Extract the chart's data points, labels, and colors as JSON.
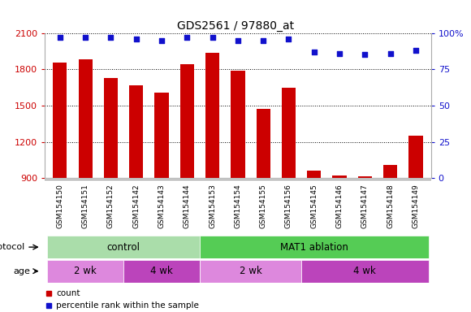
{
  "title": "GDS2561 / 97880_at",
  "samples": [
    "GSM154150",
    "GSM154151",
    "GSM154152",
    "GSM154142",
    "GSM154143",
    "GSM154144",
    "GSM154153",
    "GSM154154",
    "GSM154155",
    "GSM154156",
    "GSM154145",
    "GSM154146",
    "GSM154147",
    "GSM154148",
    "GSM154149"
  ],
  "counts": [
    1855,
    1880,
    1730,
    1670,
    1610,
    1840,
    1940,
    1790,
    1470,
    1650,
    960,
    920,
    915,
    1010,
    1250
  ],
  "percentiles": [
    97,
    97,
    97,
    96,
    95,
    97,
    97,
    95,
    95,
    96,
    87,
    86,
    85,
    86,
    88
  ],
  "ylim_left": [
    900,
    2100
  ],
  "ylim_right": [
    0,
    100
  ],
  "yticks_left": [
    900,
    1200,
    1500,
    1800,
    2100
  ],
  "yticks_right": [
    0,
    25,
    50,
    75,
    100
  ],
  "ytick_right_labels": [
    "0",
    "25",
    "50",
    "75",
    "100%"
  ],
  "bar_color": "#cc0000",
  "dot_color": "#1111cc",
  "grid_color": "#000000",
  "plot_bg": "#ffffff",
  "xtick_bg": "#cccccc",
  "protocol_colors": [
    "#aaddaa",
    "#55cc55"
  ],
  "protocol_labels": [
    "control",
    "MAT1 ablation"
  ],
  "protocol_starts": [
    0,
    6
  ],
  "protocol_ends": [
    6,
    15
  ],
  "age_colors": [
    "#dd88dd",
    "#bb44bb",
    "#dd88dd",
    "#bb44bb"
  ],
  "age_labels": [
    "2 wk",
    "4 wk",
    "2 wk",
    "4 wk"
  ],
  "age_starts": [
    0,
    3,
    6,
    10
  ],
  "age_ends": [
    3,
    6,
    10,
    15
  ],
  "legend_items": [
    {
      "label": "count",
      "color": "#cc0000"
    },
    {
      "label": "percentile rank within the sample",
      "color": "#1111cc"
    }
  ]
}
